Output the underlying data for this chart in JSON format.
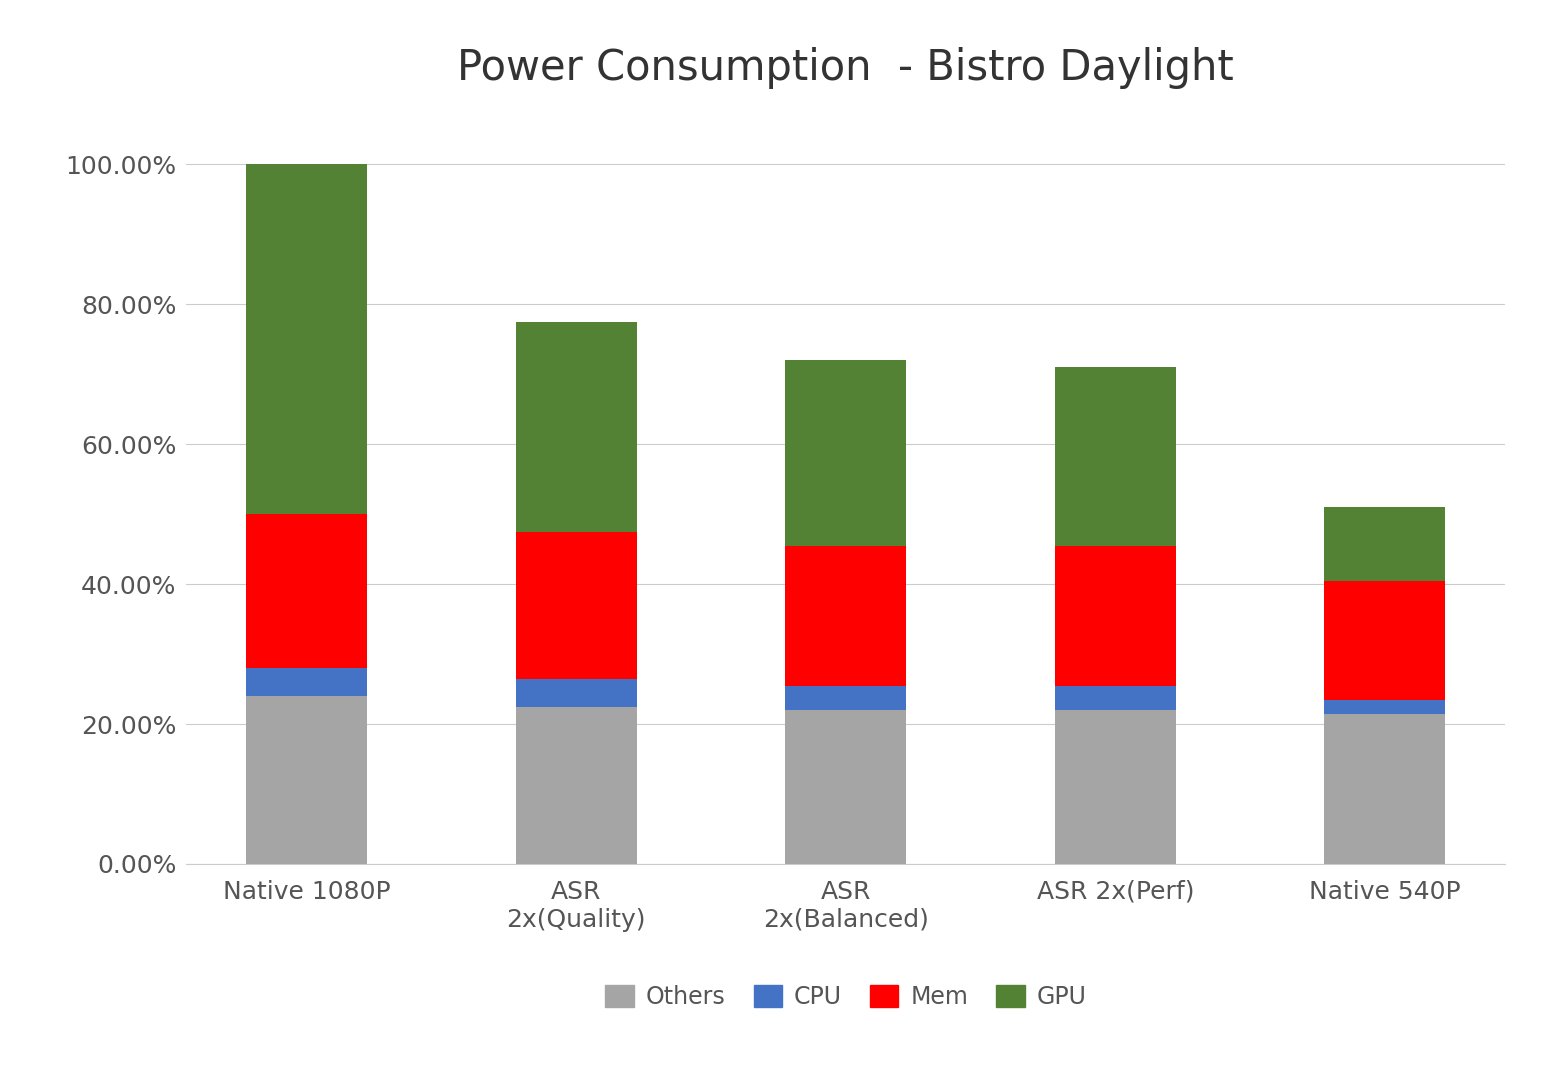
{
  "title": "Power Consumption  - Bistro Daylight",
  "categories": [
    "Native 1080P",
    "ASR\n2x(Quality)",
    "ASR\n2x(Balanced)",
    "ASR 2x(Perf)",
    "Native 540P"
  ],
  "others": [
    24.0,
    22.5,
    22.0,
    22.0,
    21.5
  ],
  "cpu": [
    4.0,
    4.0,
    3.5,
    3.5,
    2.0
  ],
  "mem": [
    22.0,
    21.0,
    20.0,
    20.0,
    17.0
  ],
  "gpu": [
    50.0,
    30.0,
    26.5,
    25.5,
    10.5
  ],
  "colors": {
    "others": "#A5A5A5",
    "cpu": "#4472C4",
    "mem": "#FF0000",
    "gpu": "#548235"
  },
  "ylim": [
    0,
    108
  ],
  "yticks": [
    0,
    20,
    40,
    60,
    80,
    100
  ],
  "yticklabels": [
    "0.00%",
    "20.00%",
    "40.00%",
    "60.00%",
    "80.00%",
    "100.00%"
  ],
  "background_color": "#FFFFFF",
  "title_fontsize": 30,
  "tick_fontsize": 18,
  "legend_fontsize": 17,
  "bar_width": 0.45,
  "grid_color": "#CCCCCC"
}
